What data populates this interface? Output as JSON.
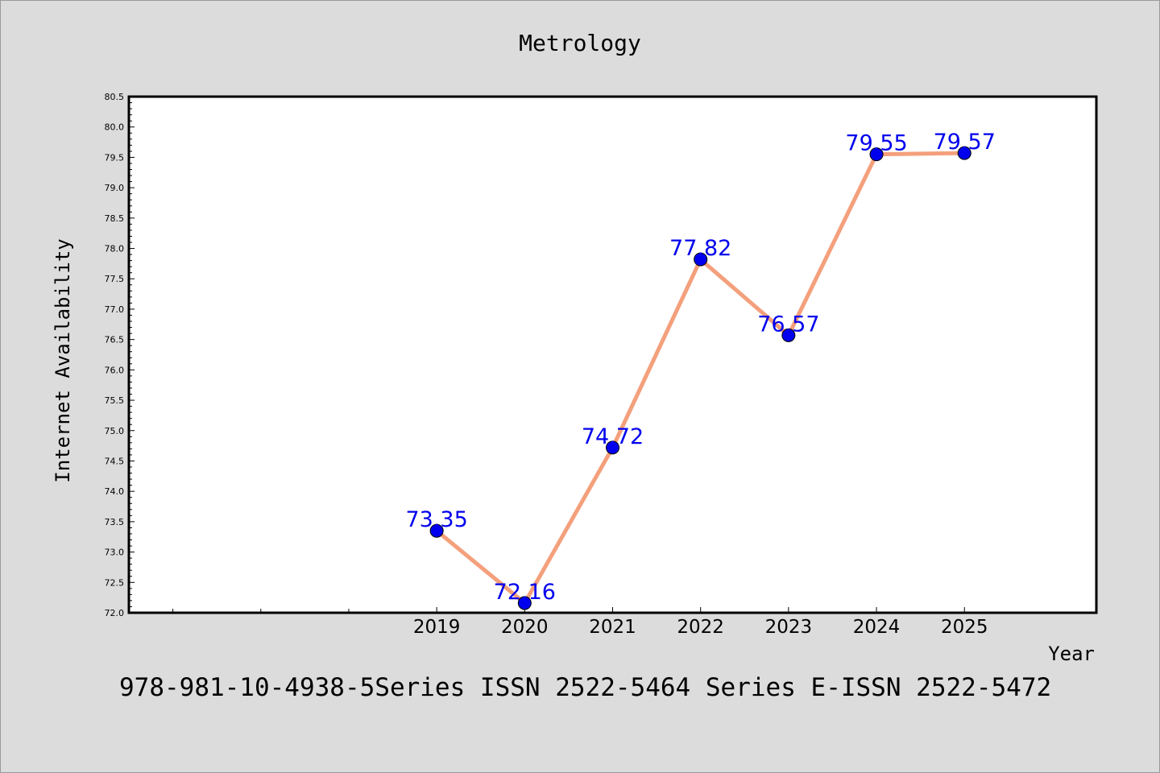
{
  "chart_data": {
    "type": "line",
    "title": "Metrology",
    "xlabel": "Year",
    "ylabel": "Internet Availability",
    "caption": "978-981-10-4938-5Series ISSN 2522-5464 Series E-ISSN 2522-5472",
    "x": [
      "2019",
      "2020",
      "2021",
      "2022",
      "2023",
      "2024",
      "2025"
    ],
    "series": [
      {
        "values": [
          73.35,
          72.16,
          74.72,
          77.82,
          76.57,
          79.55,
          79.57
        ],
        "labels": [
          "73.35",
          "72.16",
          "74.72",
          "77.82",
          "76.57",
          "79.55",
          "79.57"
        ]
      }
    ],
    "yticks": [
      "72.0",
      "72.5",
      "73.0",
      "73.5",
      "74.0",
      "74.5",
      "75.0",
      "75.5",
      "76.0",
      "76.5",
      "77.0",
      "77.5",
      "78.0",
      "78.5",
      "79.0",
      "79.5",
      "80.0",
      "80.5"
    ],
    "ylim": [
      72.0,
      80.5
    ],
    "xlim": [
      2015.5,
      2026.5
    ],
    "grid": false,
    "colors": {
      "line": "#f4a07c",
      "marker": "#0000ee",
      "label": "#0000ee",
      "background": "#dcdcdc",
      "plot": "#ffffff"
    }
  }
}
